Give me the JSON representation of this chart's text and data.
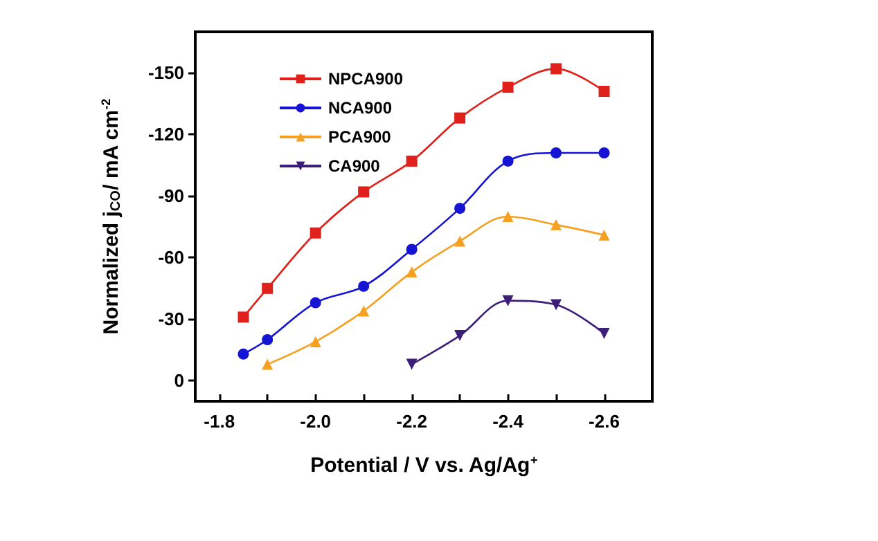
{
  "chart_data": {
    "type": "line",
    "xlabel": "Potential / V vs. Ag/Ag$^{+}$",
    "ylabel": "Normalized j$_{CO}$/ mA cm$^{-2}$",
    "xlim": [
      -1.75,
      -2.7
    ],
    "ylim": [
      10,
      -170
    ],
    "xticks": [
      -1.8,
      {
        "value": -1.9,
        "label": null
      },
      {
        "value": -2.0,
        "label": "-2.0"
      },
      {
        "value": -2.1,
        "label": null
      },
      -2.2,
      {
        "value": -2.3,
        "label": null
      },
      -2.4,
      {
        "value": -2.5,
        "label": null
      },
      -2.6
    ],
    "yticks": [
      -150,
      -120,
      -90,
      -60,
      -30,
      0
    ],
    "grid": false,
    "legend": "top left",
    "line_style": "solid",
    "series": [
      {
        "name": "NPCA900",
        "color": "#e0201b",
        "marker": "square",
        "x": [
          -1.85,
          -1.9,
          -2.0,
          -2.1,
          -2.2,
          -2.3,
          -2.4,
          -2.5,
          -2.6
        ],
        "values": [
          -31,
          -45,
          -72,
          -92,
          -107,
          -128,
          -143,
          -152,
          -141
        ]
      },
      {
        "name": "NCA900",
        "color": "#1414d2",
        "marker": "circle",
        "x": [
          -1.85,
          -1.9,
          -2.0,
          -2.1,
          -2.2,
          -2.3,
          -2.4,
          -2.5,
          -2.6
        ],
        "values": [
          -13,
          -20,
          -38,
          -46,
          -64,
          -84,
          -107,
          -111,
          -111
        ]
      },
      {
        "name": "PCA900",
        "color": "#f5a020",
        "marker": "triangle",
        "x": [
          -1.9,
          -2.0,
          -2.1,
          -2.2,
          -2.3,
          -2.4,
          -2.5,
          -2.6
        ],
        "values": [
          -8,
          -19,
          -34,
          -53,
          -68,
          -80,
          -76,
          -71
        ]
      },
      {
        "name": "CA900",
        "color": "#3c1e78",
        "marker": "triangle-down",
        "x": [
          -2.2,
          -2.3,
          -2.4,
          -2.5,
          -2.6
        ],
        "values": [
          -8,
          -22,
          -39,
          -37,
          -23
        ]
      }
    ]
  }
}
